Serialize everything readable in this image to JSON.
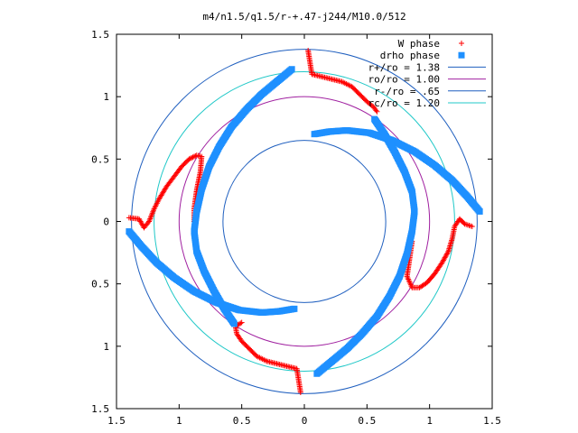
{
  "chart_data": {
    "type": "scatter",
    "title": "m4/n1.5/q1.5/r-+.47-j244/M10.0/512",
    "xlabel": "",
    "ylabel": "",
    "xlim": [
      -1.5,
      1.5
    ],
    "ylim": [
      -1.5,
      1.5
    ],
    "xticks": [
      -1.5,
      -1,
      -0.5,
      0,
      0.5,
      1,
      1.5
    ],
    "yticks": [
      -1.5,
      -1,
      -0.5,
      0,
      0.5,
      1,
      1.5
    ],
    "xtick_labels": [
      "1.5",
      "1",
      "0.5",
      "0",
      "0.5",
      "1",
      "1.5"
    ],
    "ytick_labels": [
      "1.5",
      "1",
      "0.5",
      "0",
      "0.5",
      "1",
      "1.5"
    ],
    "grid": false,
    "legend_position": "top-right",
    "series": [
      {
        "name": "W phase",
        "marker": "plus",
        "color": "#ff0000",
        "points": [
          [
            -1.4,
            0.03
          ],
          [
            -1.32,
            0.02
          ],
          [
            -1.28,
            -0.05
          ],
          [
            -1.24,
            0.0
          ],
          [
            -1.2,
            0.1
          ],
          [
            -1.16,
            0.18
          ],
          [
            -1.1,
            0.28
          ],
          [
            -1.04,
            0.36
          ],
          [
            -0.98,
            0.44
          ],
          [
            -0.92,
            0.5
          ],
          [
            -0.86,
            0.53
          ],
          [
            -0.82,
            0.52
          ],
          [
            -0.83,
            0.4
          ],
          [
            -0.86,
            0.25
          ],
          [
            -0.88,
            0.1
          ],
          [
            -0.88,
            0.0
          ],
          [
            0.03,
            1.37
          ],
          [
            0.06,
            1.18
          ],
          [
            0.14,
            1.16
          ],
          [
            0.22,
            1.14
          ],
          [
            0.3,
            1.12
          ],
          [
            0.38,
            1.08
          ],
          [
            0.44,
            1.02
          ],
          [
            0.5,
            0.96
          ],
          [
            0.55,
            0.92
          ],
          [
            0.58,
            0.88
          ],
          [
            1.34,
            -0.04
          ],
          [
            1.28,
            -0.02
          ],
          [
            1.24,
            0.02
          ],
          [
            1.2,
            -0.04
          ],
          [
            1.18,
            -0.14
          ],
          [
            1.15,
            -0.24
          ],
          [
            1.1,
            -0.33
          ],
          [
            1.04,
            -0.42
          ],
          [
            0.98,
            -0.49
          ],
          [
            0.92,
            -0.53
          ],
          [
            0.86,
            -0.53
          ],
          [
            0.82,
            -0.44
          ],
          [
            0.84,
            -0.3
          ],
          [
            0.86,
            -0.16
          ],
          [
            -0.03,
            -1.37
          ],
          [
            -0.06,
            -1.18
          ],
          [
            -0.14,
            -1.16
          ],
          [
            -0.22,
            -1.14
          ],
          [
            -0.3,
            -1.12
          ],
          [
            -0.38,
            -1.08
          ],
          [
            -0.44,
            -1.02
          ],
          [
            -0.5,
            -0.96
          ],
          [
            -0.54,
            -0.9
          ],
          [
            -0.55,
            -0.84
          ],
          [
            -0.5,
            -0.81
          ]
        ]
      },
      {
        "name": "drho phase",
        "marker": "square",
        "color": "#1e90ff",
        "points": [
          [
            -1.4,
            -0.08
          ],
          [
            -1.3,
            -0.2
          ],
          [
            -1.18,
            -0.33
          ],
          [
            -1.04,
            -0.45
          ],
          [
            -0.88,
            -0.56
          ],
          [
            -0.7,
            -0.65
          ],
          [
            -0.52,
            -0.71
          ],
          [
            -0.34,
            -0.73
          ],
          [
            -0.2,
            -0.72
          ],
          [
            -0.08,
            -0.7
          ],
          [
            -0.1,
            1.22
          ],
          [
            -0.22,
            1.12
          ],
          [
            -0.34,
            1.02
          ],
          [
            -0.46,
            0.9
          ],
          [
            -0.58,
            0.76
          ],
          [
            -0.68,
            0.6
          ],
          [
            -0.76,
            0.44
          ],
          [
            -0.82,
            0.26
          ],
          [
            -0.86,
            0.08
          ],
          [
            -0.88,
            -0.08
          ],
          [
            -0.86,
            -0.24
          ],
          [
            -0.8,
            -0.4
          ],
          [
            -0.72,
            -0.56
          ],
          [
            -0.64,
            -0.7
          ],
          [
            -0.56,
            -0.82
          ],
          [
            1.4,
            0.08
          ],
          [
            1.3,
            0.2
          ],
          [
            1.18,
            0.33
          ],
          [
            1.04,
            0.45
          ],
          [
            0.88,
            0.56
          ],
          [
            0.7,
            0.65
          ],
          [
            0.52,
            0.71
          ],
          [
            0.34,
            0.73
          ],
          [
            0.2,
            0.72
          ],
          [
            0.08,
            0.7
          ],
          [
            0.1,
            -1.22
          ],
          [
            0.22,
            -1.12
          ],
          [
            0.34,
            -1.02
          ],
          [
            0.46,
            -0.9
          ],
          [
            0.58,
            -0.76
          ],
          [
            0.68,
            -0.6
          ],
          [
            0.76,
            -0.44
          ],
          [
            0.82,
            -0.26
          ],
          [
            0.86,
            -0.08
          ],
          [
            0.88,
            0.08
          ],
          [
            0.86,
            0.24
          ],
          [
            0.8,
            0.4
          ],
          [
            0.72,
            0.56
          ],
          [
            0.64,
            0.7
          ],
          [
            0.56,
            0.82
          ]
        ]
      }
    ],
    "circles": [
      {
        "name": "r+/ro = 1.38",
        "radius": 1.38,
        "color": "#1f5fbf"
      },
      {
        "name": "ro/ro = 1.00",
        "radius": 1.0,
        "color": "#a020a0"
      },
      {
        "name": "r-/ro =  .65",
        "radius": 0.65,
        "color": "#1f5fbf"
      },
      {
        "name": "rc/ro = 1.20",
        "radius": 1.2,
        "color": "#20c8c8"
      }
    ]
  }
}
